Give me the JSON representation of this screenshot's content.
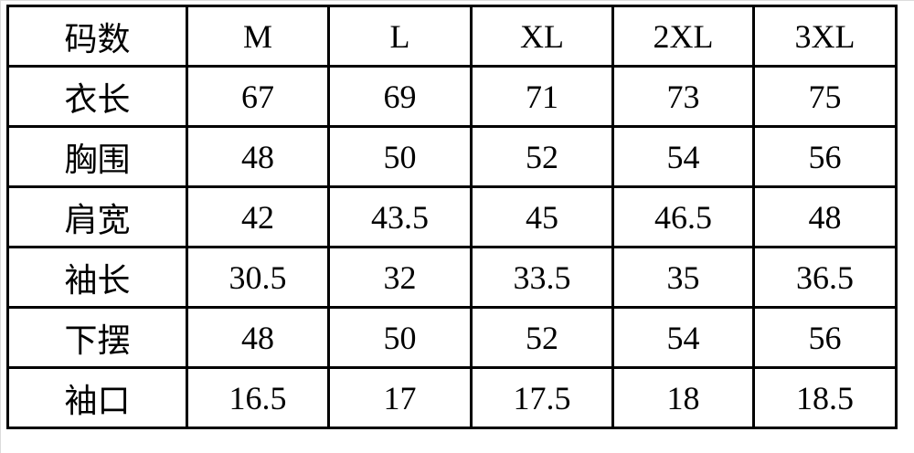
{
  "table": {
    "header": [
      "码数",
      "M",
      "L",
      "XL",
      "2XL",
      "3XL"
    ],
    "rows": [
      [
        "衣长",
        "67",
        "69",
        "71",
        "73",
        "75"
      ],
      [
        "胸围",
        "48",
        "50",
        "52",
        "54",
        "56"
      ],
      [
        "肩宽",
        "42",
        "43.5",
        "45",
        "46.5",
        "48"
      ],
      [
        "袖长",
        "30.5",
        "32",
        "33.5",
        "35",
        "36.5"
      ],
      [
        "下摆",
        "48",
        "50",
        "52",
        "54",
        "56"
      ],
      [
        "袖口",
        "16.5",
        "17",
        "17.5",
        "18",
        "18.5"
      ]
    ]
  }
}
